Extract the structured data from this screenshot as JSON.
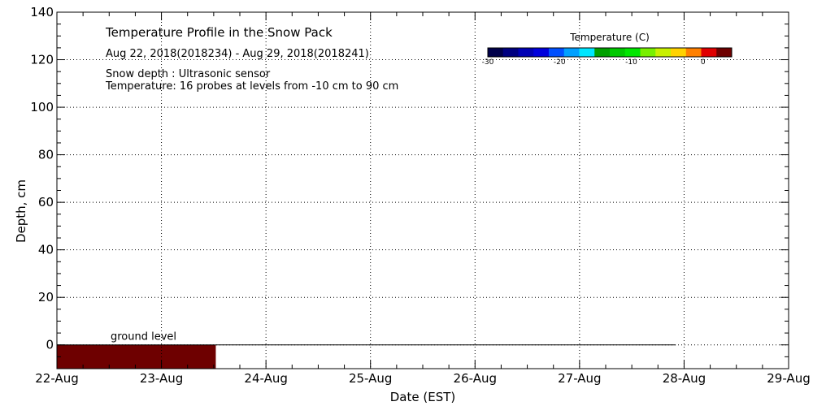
{
  "chart_data": {
    "type": "heatmap",
    "title": "Temperature Profile in the Snow Pack",
    "subtitle": "Aug 22, 2018(2018234) - Aug 29, 2018(2018241)",
    "notes": [
      "Snow depth : Ultrasonic sensor",
      "Temperature: 16 probes at levels from -10 cm to 90 cm"
    ],
    "xlabel": "Date (EST)",
    "ylabel": "Depth, cm",
    "x_ticks": [
      "22-Aug",
      "23-Aug",
      "24-Aug",
      "25-Aug",
      "26-Aug",
      "27-Aug",
      "28-Aug",
      "29-Aug"
    ],
    "ylim": [
      -10,
      140
    ],
    "y_ticks": [
      0,
      20,
      40,
      60,
      80,
      100,
      120,
      140
    ],
    "grid": true,
    "colorbar": {
      "title": "Temperature (C)",
      "tick_labels": [
        "-30",
        "-20",
        "-10",
        "0"
      ],
      "ticks": [
        -30,
        -20,
        -10,
        0
      ],
      "range": [
        -30,
        4
      ],
      "colors": [
        "#00004a",
        "#000080",
        "#0000b4",
        "#0000dc",
        "#0050ff",
        "#00a0ff",
        "#00e6ff",
        "#00a000",
        "#00c800",
        "#00e600",
        "#78f000",
        "#c8f000",
        "#ffd200",
        "#ff8000",
        "#e00000",
        "#6e0000"
      ],
      "placement": "top-right"
    },
    "temperature_fill": [
      {
        "x_start": 0,
        "x_end": 1.52,
        "depth_from": -10,
        "depth_to": 0,
        "color": "#6e0000"
      }
    ],
    "ground_level": {
      "label": "ground level",
      "depth": 0,
      "x_end": 5.92
    },
    "snow_depth": []
  }
}
